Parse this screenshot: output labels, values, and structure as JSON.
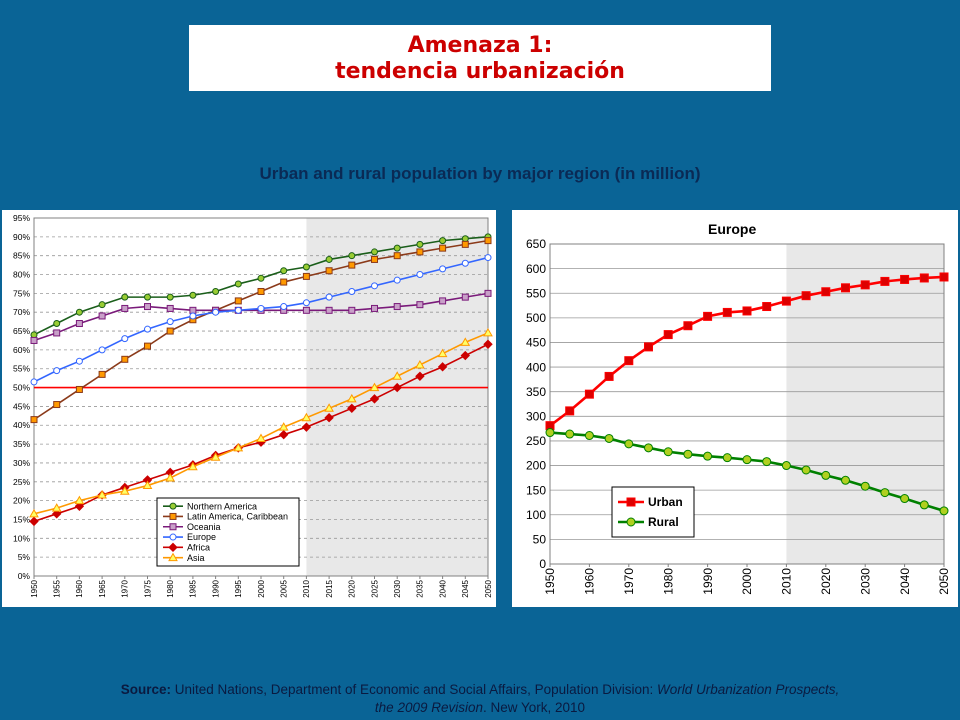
{
  "slide": {
    "title_line1": "Amenaza 1:",
    "title_line2": "tendencia urbanización",
    "subtitle": "Urban and rural population by major region (in million)",
    "source_label": "Source:",
    "source_text_1": " United Nations, Department of Economic and Social Affairs, Population Division: ",
    "source_title_1": "World Urbanization Prospects,",
    "source_title_2": "the 2009 Revision",
    "source_text_2": ". New York, 2010"
  },
  "colors": {
    "background": "#0a6496",
    "title": "#cc0000",
    "projection_shade": "#e8e8e8",
    "threshold_line": "#ff0000"
  },
  "chart_data": [
    {
      "type": "line",
      "title": "",
      "x": [
        1950,
        1955,
        1960,
        1965,
        1970,
        1975,
        1980,
        1985,
        1990,
        1995,
        2000,
        2005,
        2010,
        2015,
        2020,
        2025,
        2030,
        2035,
        2040,
        2045,
        2050
      ],
      "x_tick_labels": [
        "1950",
        "1955",
        "1960",
        "1965",
        "1970",
        "1975",
        "1980",
        "1985",
        "1990",
        "1995",
        "2000",
        "2005",
        "2010",
        "2015",
        "2020",
        "2025",
        "2030",
        "2035",
        "2040",
        "2045",
        "2050"
      ],
      "ylim": [
        0,
        95
      ],
      "y_ticks": [
        0,
        5,
        10,
        15,
        20,
        25,
        30,
        35,
        40,
        45,
        50,
        55,
        60,
        65,
        70,
        75,
        80,
        85,
        90,
        95
      ],
      "y_tick_labels": [
        "0%",
        "5%",
        "10%",
        "15%",
        "20%",
        "25%",
        "30%",
        "35%",
        "40%",
        "45%",
        "50%",
        "55%",
        "60%",
        "65%",
        "70%",
        "75%",
        "80%",
        "85%",
        "90%",
        "95%"
      ],
      "grid": true,
      "projection_start": 2010,
      "threshold": 50,
      "legend_position": "bottom-center",
      "series": [
        {
          "name": "Northern America",
          "color": "#1a5e1a",
          "marker_fill": "#99cc33",
          "marker": "circle",
          "values": [
            64,
            67,
            70,
            72,
            74,
            74,
            74,
            74.5,
            75.5,
            77.5,
            79,
            81,
            82,
            84,
            85,
            86,
            87,
            88,
            89,
            89.5,
            90
          ]
        },
        {
          "name": "Latin America, Caribbean",
          "color": "#8b3a1a",
          "marker_fill": "#ff9900",
          "marker": "square",
          "values": [
            41.5,
            45.5,
            49.5,
            53.5,
            57.5,
            61,
            65,
            68,
            70.5,
            73,
            75.5,
            78,
            79.5,
            81,
            82.5,
            84,
            85,
            86,
            87,
            88,
            89
          ]
        },
        {
          "name": "Oceania",
          "color": "#7a1a7a",
          "marker_fill": "#c8a0c8",
          "marker": "square",
          "values": [
            62.5,
            64.5,
            67,
            69,
            71,
            71.5,
            71,
            70.5,
            70.5,
            70.5,
            70.5,
            70.5,
            70.5,
            70.5,
            70.5,
            71,
            71.5,
            72,
            73,
            74,
            75
          ]
        },
        {
          "name": "Europe",
          "color": "#3366ff",
          "marker_fill": "#ffffff",
          "marker": "circle",
          "values": [
            51.5,
            54.5,
            57,
            60,
            63,
            65.5,
            67.5,
            69,
            70,
            70.5,
            71,
            71.5,
            72.5,
            74,
            75.5,
            77,
            78.5,
            80,
            81.5,
            83,
            84.5
          ]
        },
        {
          "name": "Africa",
          "color": "#cc0000",
          "marker_fill": "#cc0000",
          "marker": "diamond",
          "values": [
            14.5,
            16.5,
            18.5,
            21.5,
            23.5,
            25.5,
            27.5,
            29.5,
            32,
            34,
            35.5,
            37.5,
            39.5,
            42,
            44.5,
            47,
            50,
            53,
            55.5,
            58.5,
            61.5
          ]
        },
        {
          "name": "Asia",
          "color": "#ff9900",
          "marker_fill": "#ffff66",
          "marker": "triangle",
          "values": [
            16.5,
            18,
            20,
            21.5,
            22.5,
            24,
            26,
            29,
            31.5,
            34,
            36.5,
            39.5,
            42,
            44.5,
            47,
            50,
            53,
            56,
            59,
            62,
            64.5
          ]
        }
      ]
    },
    {
      "type": "line",
      "title": "Europe",
      "x": [
        1950,
        1955,
        1960,
        1965,
        1970,
        1975,
        1980,
        1985,
        1990,
        1995,
        2000,
        2005,
        2010,
        2015,
        2020,
        2025,
        2030,
        2035,
        2040,
        2045,
        2050
      ],
      "x_tick_labels": [
        "1950",
        "1960",
        "1970",
        "1980",
        "1990",
        "2000",
        "2010",
        "2020",
        "2030",
        "2040",
        "2050"
      ],
      "ylim": [
        0,
        650
      ],
      "y_ticks": [
        0,
        50,
        100,
        150,
        200,
        250,
        300,
        350,
        400,
        450,
        500,
        550,
        600,
        650
      ],
      "y_tick_labels": [
        "0",
        "50",
        "100",
        "150",
        "200",
        "250",
        "300",
        "350",
        "400",
        "450",
        "500",
        "550",
        "600",
        "650"
      ],
      "grid": true,
      "projection_start": 2010,
      "legend_position": "bottom-left",
      "series": [
        {
          "name": "Urban",
          "color": "#ff0000",
          "marker_fill": "#dd0000",
          "marker": "square",
          "values": [
            281,
            311,
            345,
            381,
            413,
            441,
            466,
            484,
            503,
            511,
            514,
            523,
            534,
            545,
            553,
            561,
            567,
            574,
            578,
            581,
            583
          ]
        },
        {
          "name": "Rural",
          "color": "#008000",
          "marker_fill": "#b0d020",
          "marker": "circle",
          "values": [
            267,
            264,
            261,
            255,
            244,
            236,
            228,
            223,
            219,
            216,
            212,
            208,
            200,
            191,
            180,
            170,
            158,
            145,
            133,
            120,
            108
          ]
        }
      ]
    }
  ]
}
